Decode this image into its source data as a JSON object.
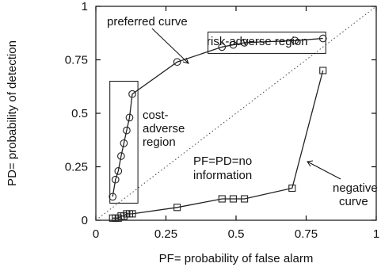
{
  "chart_data": {
    "type": "line",
    "xlabel": "PF= probability of false alarm",
    "ylabel": "PD= probability of detection",
    "xlim": [
      0,
      1
    ],
    "ylim": [
      0,
      1
    ],
    "xticks": [
      0,
      0.25,
      0.5,
      0.75,
      1
    ],
    "xtick_labels": [
      "0",
      "0.25",
      "0.5",
      "0.75",
      "1"
    ],
    "yticks": [
      0,
      0.25,
      0.5,
      0.75,
      1
    ],
    "ytick_labels": [
      "0",
      "0.25",
      "0.5",
      "0.75",
      "1"
    ],
    "grid": false,
    "series": [
      {
        "marker": "circle",
        "points": [
          [
            0.06,
            0.11
          ],
          [
            0.07,
            0.19
          ],
          [
            0.08,
            0.23
          ],
          [
            0.09,
            0.3
          ],
          [
            0.1,
            0.36
          ],
          [
            0.11,
            0.42
          ],
          [
            0.12,
            0.48
          ],
          [
            0.13,
            0.59
          ],
          [
            0.29,
            0.74
          ],
          [
            0.45,
            0.81
          ],
          [
            0.49,
            0.82
          ],
          [
            0.53,
            0.83
          ],
          [
            0.71,
            0.84
          ],
          [
            0.81,
            0.85
          ]
        ]
      },
      {
        "marker": "square",
        "points": [
          [
            0.06,
            0.01
          ],
          [
            0.07,
            0.01
          ],
          [
            0.08,
            0.01
          ],
          [
            0.09,
            0.02
          ],
          [
            0.1,
            0.02
          ],
          [
            0.11,
            0.03
          ],
          [
            0.12,
            0.03
          ],
          [
            0.13,
            0.03
          ],
          [
            0.29,
            0.06
          ],
          [
            0.45,
            0.1
          ],
          [
            0.49,
            0.1
          ],
          [
            0.53,
            0.1
          ],
          [
            0.7,
            0.15
          ],
          [
            0.81,
            0.7
          ]
        ]
      }
    ],
    "reference_line": [
      [
        0,
        0
      ],
      [
        1,
        1
      ]
    ],
    "regions": [
      {
        "label": "cost-adverse region",
        "x": [
          0.05,
          0.15
        ],
        "y": [
          0.08,
          0.65
        ]
      },
      {
        "label": "risk-adverse region",
        "x": [
          0.4,
          0.82
        ],
        "y": [
          0.78,
          0.88
        ]
      }
    ],
    "annotations": {
      "preferred_curve": "preferred curve",
      "risk_adverse": "risk-adverse region",
      "cost_adverse_lines": [
        "cost-",
        "adverse",
        "region"
      ],
      "no_information_lines": [
        "PF=PD=no",
        "information"
      ],
      "negative_curve_lines": [
        "negative",
        "curve"
      ]
    }
  }
}
